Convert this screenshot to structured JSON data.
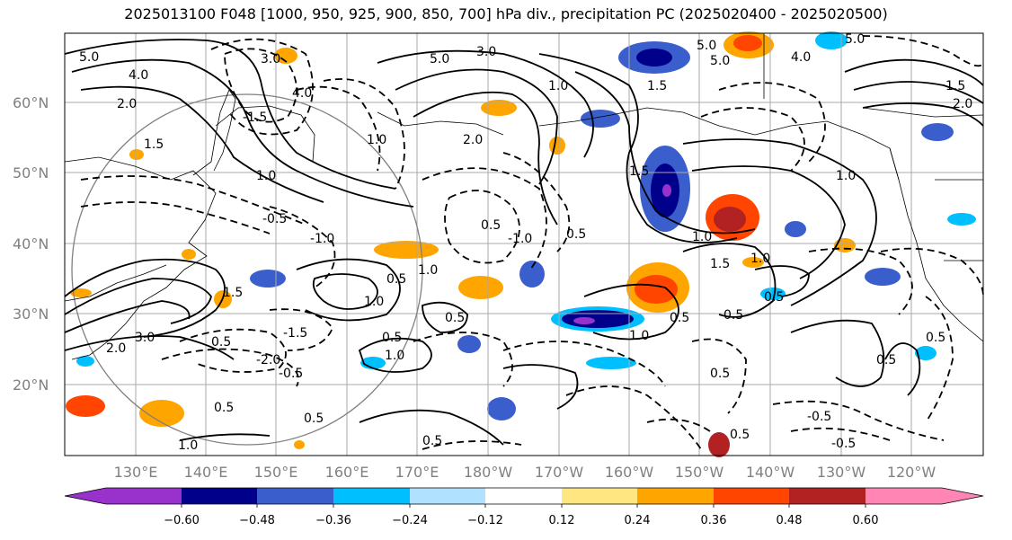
{
  "title": "2025013100 F048 [1000, 950, 925, 900, 850, 700] hPa div., precipitation PC (2025020400 - 2025020500)",
  "lat_labels": [
    "60°N",
    "50°N",
    "40°N",
    "30°N",
    "20°N"
  ],
  "lon_labels": [
    "130°E",
    "140°E",
    "150°E",
    "160°E",
    "170°E",
    "180°W",
    "170°W",
    "160°W",
    "150°W",
    "140°W",
    "130°W",
    "120°W"
  ],
  "colorbar": {
    "ticks": [
      "−0.60",
      "−0.48",
      "−0.36",
      "−0.24",
      "−0.12",
      "0.12",
      "0.24",
      "0.36",
      "0.48",
      "0.60"
    ],
    "colors": [
      "#9932cc",
      "#00008b",
      "#3a5fcd",
      "#00bfff",
      "#b0e2ff",
      "#ffffff",
      "#ffe680",
      "#ffa500",
      "#ff4500",
      "#b22222",
      "#ff86b4"
    ]
  },
  "contour_labels": [
    "5.0",
    "4.0",
    "3.0",
    "2.0",
    "1.5",
    "1.0",
    "0.5",
    "-0.5",
    "-1.0",
    "-1.5",
    "-2.0"
  ]
}
